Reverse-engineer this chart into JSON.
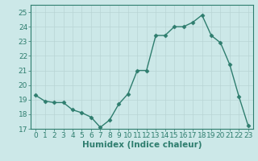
{
  "x": [
    0,
    1,
    2,
    3,
    4,
    5,
    6,
    7,
    8,
    9,
    10,
    11,
    12,
    13,
    14,
    15,
    16,
    17,
    18,
    19,
    20,
    21,
    22,
    23
  ],
  "y": [
    19.3,
    18.9,
    18.8,
    18.8,
    18.3,
    18.1,
    17.8,
    17.1,
    17.6,
    18.7,
    19.4,
    21.0,
    21.0,
    23.4,
    23.4,
    24.0,
    24.0,
    24.3,
    24.8,
    23.4,
    22.9,
    21.4,
    19.2,
    17.2
  ],
  "line_color": "#2e7d6e",
  "marker": "D",
  "markersize": 2.5,
  "linewidth": 1.0,
  "xlabel": "Humidex (Indice chaleur)",
  "xlim": [
    -0.5,
    23.5
  ],
  "ylim": [
    17,
    25.5
  ],
  "yticks": [
    17,
    18,
    19,
    20,
    21,
    22,
    23,
    24,
    25
  ],
  "xticks": [
    0,
    1,
    2,
    3,
    4,
    5,
    6,
    7,
    8,
    9,
    10,
    11,
    12,
    13,
    14,
    15,
    16,
    17,
    18,
    19,
    20,
    21,
    22,
    23
  ],
  "bg_color": "#cce8e8",
  "grid_color": "#b8d4d4",
  "spine_color": "#2e7d6e",
  "tick_color": "#2e7d6e",
  "label_color": "#2e7d6e",
  "xlabel_fontsize": 7.5,
  "tick_fontsize": 6.5
}
